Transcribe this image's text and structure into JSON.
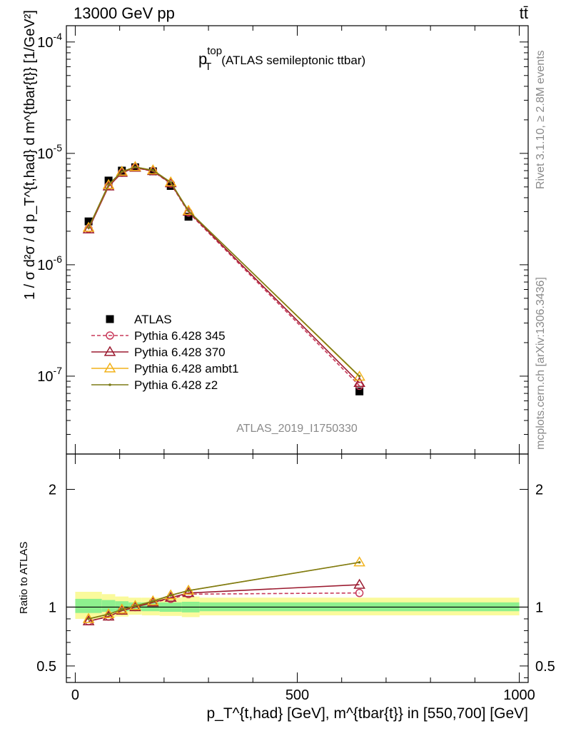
{
  "header": {
    "energy_label": "13000 GeV pp",
    "process_label": "tt̄",
    "rivet_label": "Rivet 3.1.10, ≥ 2.8M events",
    "mcplots_label": "mcplots.cern.ch [arXiv:1306.3436]",
    "analysis_label": "ATLAS_2019_I1750330"
  },
  "main_plot": {
    "title_base": "p",
    "title_sup": "top",
    "title_sub": "T",
    "title_suffix": "(ATLAS semileptonic ttbar)",
    "ylabel": "1 / σ d²σ / d p_T^{t,had} d m^{tbar{t}} [1/GeV²]"
  },
  "ratio_plot": {
    "ylabel": "Ratio to ATLAS"
  },
  "xaxis": {
    "label": "p_T^{t,had} [GeV], m^{tbar{t}} in [550,700] [GeV]"
  },
  "colors": {
    "atlas": "#000000",
    "p345": "#c8395a",
    "p370": "#9b1b30",
    "ambt1": "#f2b21a",
    "z2": "#7b7a15",
    "band_inner": "#8ef08e",
    "band_outer": "#fafa9c"
  },
  "chart_data": [
    {
      "type": "scatter",
      "panel": "main",
      "title": "p_T^top (ATLAS semileptonic ttbar)",
      "ylabel": "1 / σ d²σ / d p_T^{t,had} d m^{tbar{t}} [1/GeV²]",
      "xlabel": "p_T^{t,had} [GeV], m^{tbar{t}} in [550,700] [GeV]",
      "xlim": [
        -20,
        1020
      ],
      "ylim": [
        2e-08,
        0.00014
      ],
      "yscale": "log",
      "ytick_labels": [
        "10^-7",
        "10^-6",
        "10^-5",
        "10^-4"
      ],
      "xtick_labels": [
        "0",
        "500",
        "1000"
      ],
      "legend_position": "center-left",
      "series": [
        {
          "name": "ATLAS",
          "style": "data",
          "x": [
            30,
            75,
            105,
            135,
            175,
            215,
            255,
            640
          ],
          "y": [
            2.45e-06,
            5.7e-06,
            7e-06,
            7.5e-06,
            6.9e-06,
            5.1e-06,
            2.7e-06,
            7.3e-08
          ]
        },
        {
          "name": "Pythia 6.428 345",
          "style": "dashed-circle",
          "x": [
            30,
            75,
            105,
            135,
            175,
            215,
            255,
            640
          ],
          "y": [
            2.1e-06,
            5.1e-06,
            6.7e-06,
            7.45e-06,
            6.9e-06,
            5.35e-06,
            2.95e-06,
            8.2e-08
          ]
        },
        {
          "name": "Pythia 6.428 370",
          "style": "solid-triangle",
          "x": [
            30,
            75,
            105,
            135,
            175,
            215,
            255,
            640
          ],
          "y": [
            2.08e-06,
            5.05e-06,
            6.7e-06,
            7.45e-06,
            6.95e-06,
            5.4e-06,
            3e-06,
            8.7e-08
          ]
        },
        {
          "name": "Pythia 6.428 ambt1",
          "style": "solid-triangle",
          "x": [
            30,
            75,
            105,
            135,
            175,
            215,
            255,
            640
          ],
          "y": [
            2.15e-06,
            5.2e-06,
            6.85e-06,
            7.55e-06,
            7.05e-06,
            5.5e-06,
            3.05e-06,
            9.9e-08
          ]
        },
        {
          "name": "Pythia 6.428 z2",
          "style": "solid-dot",
          "x": [
            30,
            75,
            105,
            135,
            175,
            215,
            255,
            640
          ],
          "y": [
            2.15e-06,
            5.25e-06,
            6.85e-06,
            7.55e-06,
            7.05e-06,
            5.5e-06,
            3.05e-06,
            1e-07
          ]
        }
      ]
    },
    {
      "type": "line",
      "panel": "ratio",
      "ylabel": "Ratio to ATLAS",
      "xlim": [
        -20,
        1020
      ],
      "ylim": [
        0.36,
        2.3
      ],
      "ytick_labels": [
        "0.5",
        "1",
        "2"
      ],
      "xtick_labels": [
        "0",
        "500",
        "1000"
      ],
      "reference": 1.0,
      "band_edges": [
        0,
        60,
        90,
        120,
        150,
        190,
        240,
        280,
        1000
      ],
      "band_inner": [
        [
          0.95,
          1.07
        ],
        [
          0.96,
          1.06
        ],
        [
          0.965,
          1.05
        ],
        [
          0.97,
          1.04
        ],
        [
          0.965,
          1.04
        ],
        [
          0.96,
          1.04
        ],
        [
          0.955,
          1.045
        ],
        [
          0.965,
          1.04
        ]
      ],
      "band_outer": [
        [
          0.9,
          1.13
        ],
        [
          0.91,
          1.11
        ],
        [
          0.92,
          1.09
        ],
        [
          0.935,
          1.08
        ],
        [
          0.93,
          1.08
        ],
        [
          0.925,
          1.08
        ],
        [
          0.915,
          1.09
        ],
        [
          0.93,
          1.08
        ]
      ],
      "series": [
        {
          "name": "Pythia 6.428 345",
          "style": "dashed-circle",
          "x": [
            30,
            75,
            105,
            135,
            175,
            215,
            255,
            640
          ],
          "y": [
            0.88,
            0.92,
            0.97,
            1.0,
            1.04,
            1.07,
            1.11,
            1.12
          ]
        },
        {
          "name": "Pythia 6.428 370",
          "style": "solid-triangle",
          "x": [
            30,
            75,
            105,
            135,
            175,
            215,
            255,
            640
          ],
          "y": [
            0.88,
            0.92,
            0.97,
            1.0,
            1.04,
            1.08,
            1.12,
            1.19
          ]
        },
        {
          "name": "Pythia 6.428 ambt1",
          "style": "solid-triangle",
          "x": [
            30,
            75,
            105,
            135,
            175,
            215,
            255,
            640
          ],
          "y": [
            0.9,
            0.94,
            0.98,
            1.01,
            1.05,
            1.1,
            1.14,
            1.38
          ]
        },
        {
          "name": "Pythia 6.428 z2",
          "style": "solid-dot",
          "x": [
            30,
            75,
            105,
            135,
            175,
            215,
            255,
            640
          ],
          "y": [
            0.9,
            0.94,
            0.98,
            1.01,
            1.05,
            1.1,
            1.14,
            1.38
          ]
        }
      ]
    }
  ]
}
